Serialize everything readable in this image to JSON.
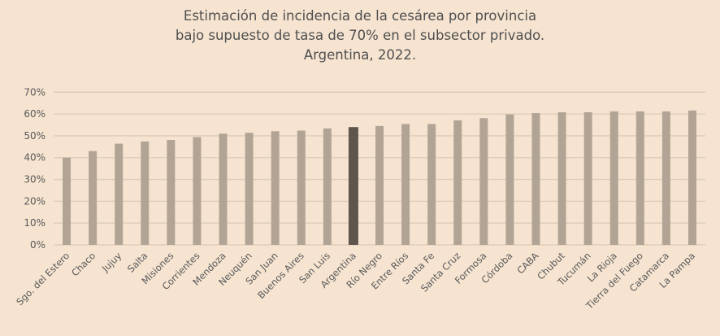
{
  "chart_data": {
    "type": "bar",
    "title": [
      "Estimación de incidencia de la cesárea por provincia",
      "bajo supuesto de tasa de 70% en el subsector privado.",
      "Argentina, 2022."
    ],
    "xlabel": "",
    "ylabel": "",
    "ylim": [
      0,
      70
    ],
    "yticks": [
      "0%",
      "10%",
      "20%",
      "30%",
      "40%",
      "50%",
      "60%",
      "70%"
    ],
    "grid": true,
    "categories": [
      "Sgo. del Estero",
      "Chaco",
      "Jujuy",
      "Salta",
      "Misiones",
      "Corrientes",
      "Mendoza",
      "Neuquén",
      "San Juan",
      "Buenos Aires",
      "San Luis",
      "Argentina",
      "Río Negro",
      "Entre Ríos",
      "Santa Fe",
      "Santa Cruz",
      "Formosa",
      "Córdoba",
      "CABA",
      "Chubut",
      "Tucumán",
      "La Rioja",
      "Tierra del Fuego",
      "Catamarca",
      "La Pampa"
    ],
    "values": [
      40.0,
      43.0,
      46.4,
      47.4,
      48.1,
      49.4,
      51.0,
      51.4,
      52.1,
      52.4,
      53.4,
      54.0,
      54.5,
      55.4,
      55.4,
      57.1,
      58.1,
      59.8,
      60.4,
      60.8,
      60.8,
      61.2,
      61.2,
      61.2,
      61.6
    ],
    "highlight": "Argentina",
    "colors": {
      "bar": "#b2a495",
      "highlight": "#5e554d",
      "grid": "#dccbb8",
      "background": "#f6e4d1"
    }
  }
}
